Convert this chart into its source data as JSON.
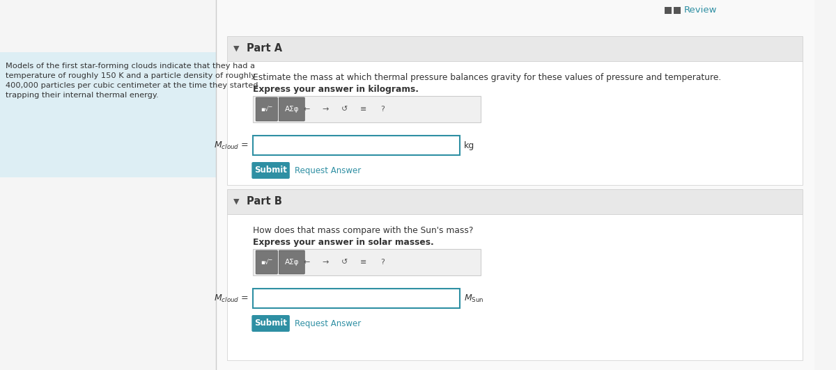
{
  "bg_color": "#f5f5f5",
  "left_panel_color": "#ddeef4",
  "left_panel_text": "Models of the first star-forming clouds indicate that they had a\ntemperature of roughly 150 K and a particle density of roughly\n400,000 particles per cubic centimeter at the time they started\ntrapping their internal thermal energy.",
  "right_bg_color": "#ffffff",
  "part_a_header": "Part A",
  "part_b_header": "Part B",
  "part_a_desc1": "Estimate the mass at which thermal pressure balances gravity for these values of pressure and temperature.",
  "part_a_desc2": "Express your answer in kilograms.",
  "part_b_desc1": "How does that mass compare with the Sun's mass?",
  "part_b_desc2": "Express your answer in solar masses.",
  "review_text": "Review",
  "submit_color": "#2e8fa3",
  "submit_text": "Submit",
  "request_answer_text": "Request Answer",
  "request_answer_color": "#2e8fa3",
  "toolbar_color": "#888888",
  "input_border_color": "#2e8fa3",
  "input_bg": "#ffffff",
  "panel_header_bg": "#e8e8e8",
  "divider_color": "#cccccc",
  "text_color": "#333333",
  "mcloud_label": "$M_{cloud}$ =",
  "unit_a": "kg",
  "unit_b": "$M_{\\mathrm{Sun}}$",
  "toolbar_symbols": "■√  AΣφ   ←   →   ↺   ≡   ?"
}
